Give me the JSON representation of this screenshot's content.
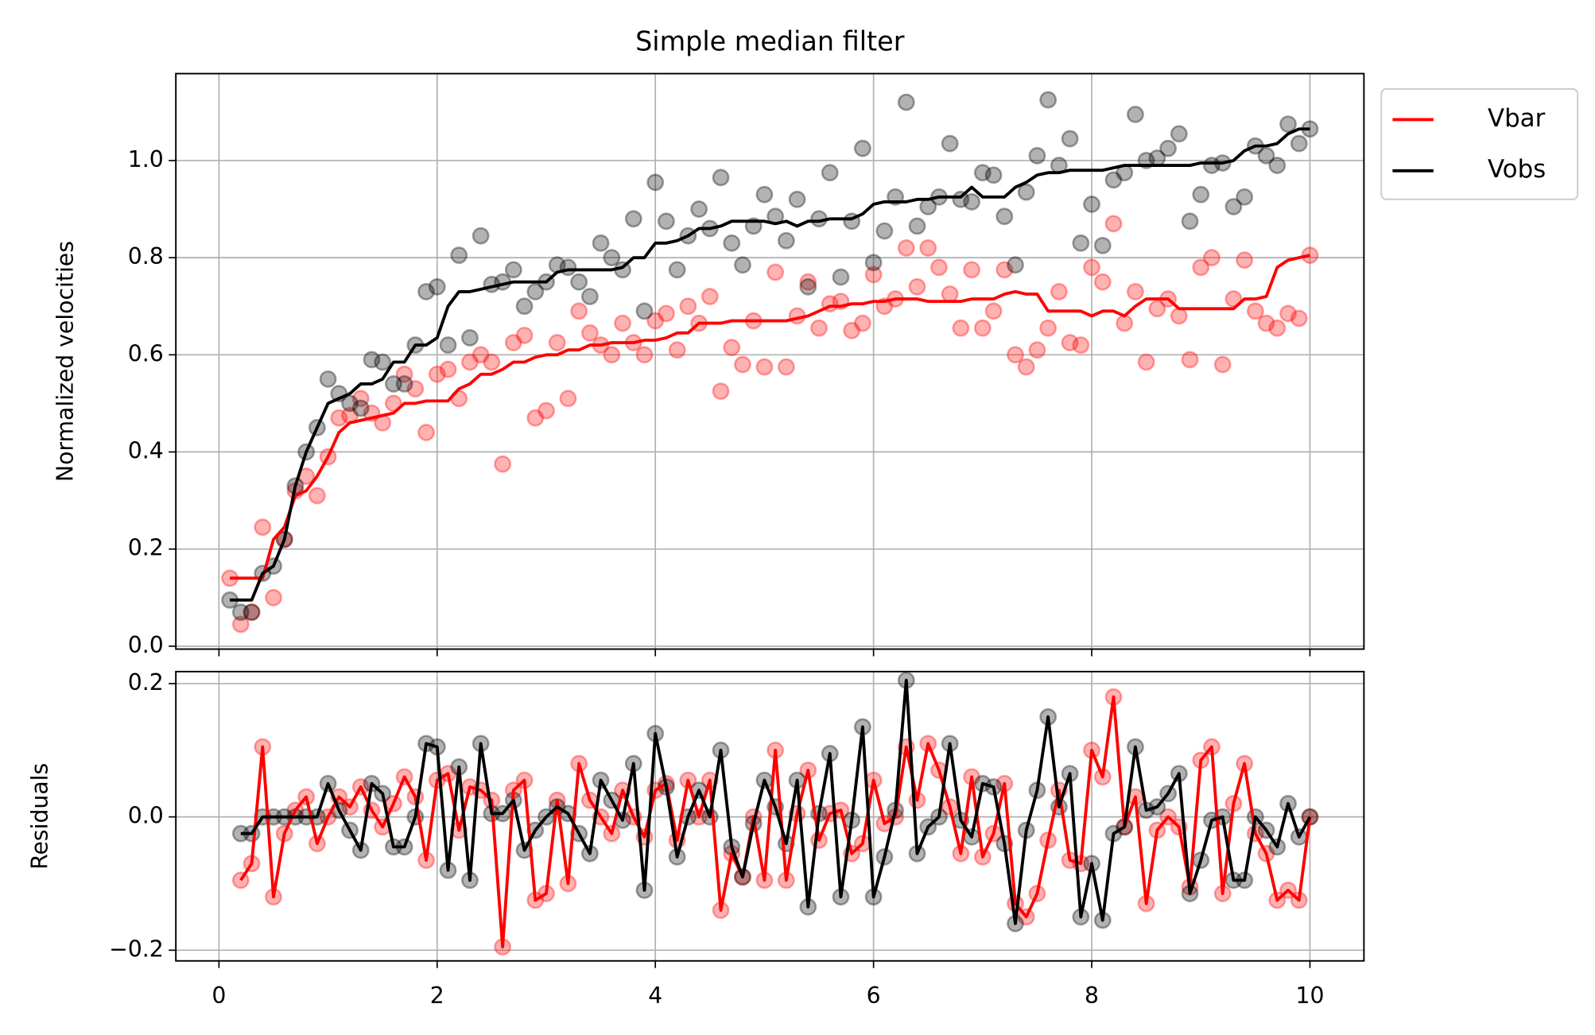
{
  "chart_data": [
    {
      "type": "line",
      "title": "Simple median filter",
      "ylabel": "Normalized velocities",
      "grid": true,
      "legend": "upper-right",
      "xlim": [
        -0.395,
        10.495
      ],
      "ylim": [
        -0.006,
        1.179
      ],
      "yticks": [
        {
          "value": 0,
          "label": "0.0"
        },
        0.2,
        0.4,
        0.6,
        0.8,
        {
          "value": 1,
          "label": "1.0"
        }
      ],
      "x": [
        0.1,
        0.2,
        0.3,
        0.4,
        0.5,
        0.6,
        0.7,
        0.8,
        0.9,
        1.0,
        1.1,
        1.2,
        1.3,
        1.4,
        1.5,
        1.6,
        1.7,
        1.8,
        1.9,
        2.0,
        2.1,
        2.2,
        2.3,
        2.4,
        2.5,
        2.6,
        2.7,
        2.8,
        2.9,
        3.0,
        3.1,
        3.2,
        3.3,
        3.4,
        3.5,
        3.6,
        3.7,
        3.8,
        3.9,
        4.0,
        4.1,
        4.2,
        4.3,
        4.4,
        4.5,
        4.6,
        4.7,
        4.8,
        4.9,
        5.0,
        5.1,
        5.2,
        5.3,
        5.4,
        5.5,
        5.6,
        5.7,
        5.8,
        5.9,
        6.0,
        6.1,
        6.2,
        6.3,
        6.4,
        6.5,
        6.6,
        6.7,
        6.8,
        6.9,
        7.0,
        7.1,
        7.2,
        7.3,
        7.4,
        7.5,
        7.6,
        7.7,
        7.8,
        7.9,
        8.0,
        8.1,
        8.2,
        8.3,
        8.4,
        8.5,
        8.6,
        8.7,
        8.8,
        8.9,
        9.0,
        9.1,
        9.2,
        9.3,
        9.4,
        9.5,
        9.6,
        9.7,
        9.8,
        9.9,
        10.0
      ],
      "series": [
        {
          "style": "scatter",
          "color": "#ff0000",
          "values": [
            0.14,
            0.045,
            0.07,
            0.245,
            0.1,
            0.22,
            0.32,
            0.35,
            0.31,
            0.39,
            0.47,
            0.475,
            0.51,
            0.48,
            0.46,
            0.5,
            0.56,
            0.53,
            0.44,
            0.56,
            0.57,
            0.51,
            0.585,
            0.6,
            0.585,
            0.375,
            0.625,
            0.64,
            0.47,
            0.485,
            0.625,
            0.51,
            0.69,
            0.645,
            0.62,
            0.6,
            0.665,
            0.625,
            0.6,
            0.67,
            0.685,
            0.61,
            0.7,
            0.665,
            0.72,
            0.525,
            0.615,
            0.58,
            0.67,
            0.575,
            0.77,
            0.575,
            0.68,
            0.75,
            0.655,
            0.705,
            0.71,
            0.65,
            0.665,
            0.765,
            0.7,
            0.715,
            0.82,
            0.74,
            0.82,
            0.78,
            0.725,
            0.655,
            0.775,
            0.655,
            0.69,
            0.775,
            0.6,
            0.575,
            0.61,
            0.655,
            0.73,
            0.625,
            0.62,
            0.78,
            0.75,
            0.87,
            0.665,
            0.73,
            0.585,
            0.695,
            0.715,
            0.68,
            0.59,
            0.78,
            0.8,
            0.58,
            0.715,
            0.795,
            0.69,
            0.665,
            0.655,
            0.685,
            0.675,
            0.805
          ]
        },
        {
          "style": "scatter",
          "color": "#000000",
          "values": [
            0.095,
            0.07,
            0.07,
            0.15,
            0.165,
            0.22,
            0.33,
            0.4,
            0.45,
            0.55,
            0.52,
            0.5,
            0.49,
            0.59,
            0.585,
            0.54,
            0.54,
            0.62,
            0.73,
            0.74,
            0.62,
            0.805,
            0.635,
            0.845,
            0.745,
            0.75,
            0.775,
            0.7,
            0.73,
            0.75,
            0.785,
            0.78,
            0.75,
            0.72,
            0.83,
            0.8,
            0.775,
            0.88,
            0.69,
            0.955,
            0.875,
            0.775,
            0.845,
            0.9,
            0.86,
            0.965,
            0.83,
            0.785,
            0.865,
            0.93,
            0.885,
            0.835,
            0.92,
            0.74,
            0.88,
            0.975,
            0.76,
            0.875,
            1.025,
            0.79,
            0.855,
            0.925,
            1.12,
            0.865,
            0.905,
            0.925,
            1.035,
            0.92,
            0.915,
            0.975,
            0.97,
            0.885,
            0.785,
            0.935,
            1.01,
            1.125,
            0.99,
            1.045,
            0.83,
            0.91,
            0.825,
            0.96,
            0.975,
            1.095,
            1.0,
            1.005,
            1.025,
            1.055,
            0.875,
            0.93,
            0.99,
            0.995,
            0.905,
            0.925,
            1.03,
            1.01,
            0.99,
            1.075,
            1.035,
            1.065
          ]
        },
        {
          "name": "Vbar",
          "color": "#ff0000",
          "values": [
            0.14,
            0.14,
            0.14,
            0.14,
            0.22,
            0.245,
            0.31,
            0.32,
            0.35,
            0.39,
            0.44,
            0.46,
            0.465,
            0.47,
            0.475,
            0.48,
            0.5,
            0.5,
            0.505,
            0.505,
            0.505,
            0.53,
            0.54,
            0.56,
            0.56,
            0.57,
            0.585,
            0.585,
            0.595,
            0.6,
            0.6,
            0.61,
            0.61,
            0.62,
            0.62,
            0.625,
            0.625,
            0.625,
            0.63,
            0.63,
            0.635,
            0.645,
            0.645,
            0.665,
            0.665,
            0.665,
            0.67,
            0.67,
            0.67,
            0.67,
            0.67,
            0.67,
            0.675,
            0.68,
            0.69,
            0.7,
            0.7,
            0.705,
            0.705,
            0.71,
            0.71,
            0.715,
            0.715,
            0.715,
            0.71,
            0.71,
            0.71,
            0.71,
            0.715,
            0.715,
            0.715,
            0.725,
            0.73,
            0.725,
            0.725,
            0.69,
            0.69,
            0.69,
            0.69,
            0.68,
            0.69,
            0.69,
            0.68,
            0.7,
            0.715,
            0.715,
            0.715,
            0.695,
            0.695,
            0.695,
            0.695,
            0.695,
            0.695,
            0.715,
            0.715,
            0.72,
            0.78,
            0.795,
            0.8,
            0.805
          ]
        },
        {
          "name": "Vobs",
          "color": "#000000",
          "values": [
            0.095,
            0.095,
            0.095,
            0.15,
            0.165,
            0.22,
            0.33,
            0.4,
            0.45,
            0.5,
            0.51,
            0.52,
            0.54,
            0.54,
            0.55,
            0.585,
            0.585,
            0.62,
            0.62,
            0.635,
            0.7,
            0.73,
            0.73,
            0.735,
            0.74,
            0.745,
            0.75,
            0.75,
            0.75,
            0.75,
            0.77,
            0.775,
            0.775,
            0.775,
            0.775,
            0.775,
            0.78,
            0.8,
            0.8,
            0.83,
            0.83,
            0.835,
            0.845,
            0.86,
            0.86,
            0.865,
            0.875,
            0.875,
            0.875,
            0.875,
            0.87,
            0.875,
            0.865,
            0.875,
            0.875,
            0.88,
            0.88,
            0.88,
            0.89,
            0.91,
            0.915,
            0.915,
            0.915,
            0.92,
            0.92,
            0.925,
            0.925,
            0.925,
            0.945,
            0.925,
            0.925,
            0.925,
            0.945,
            0.955,
            0.97,
            0.975,
            0.975,
            0.98,
            0.98,
            0.98,
            0.98,
            0.985,
            0.99,
            0.99,
            0.99,
            0.99,
            0.99,
            0.99,
            0.99,
            0.995,
            0.995,
            0.995,
            1.0,
            1.02,
            1.03,
            1.03,
            1.035,
            1.055,
            1.065,
            1.065
          ]
        }
      ]
    },
    {
      "type": "line",
      "ylabel": "Residuals",
      "grid": true,
      "xlim": [
        -0.395,
        10.495
      ],
      "ylim": [
        -0.216,
        0.218
      ],
      "xticks": [
        0,
        2,
        4,
        6,
        8,
        10
      ],
      "yticks": [
        {
          "value": -0.2,
          "label": "−0.2"
        },
        {
          "value": 0,
          "label": "0.0"
        },
        0.2
      ],
      "x": [
        0.2,
        0.3,
        0.4,
        0.5,
        0.6,
        0.7,
        0.8,
        0.9,
        1.0,
        1.1,
        1.2,
        1.3,
        1.4,
        1.5,
        1.6,
        1.7,
        1.8,
        1.9,
        2.0,
        2.1,
        2.2,
        2.3,
        2.4,
        2.5,
        2.6,
        2.7,
        2.8,
        2.9,
        3.0,
        3.1,
        3.2,
        3.3,
        3.4,
        3.5,
        3.6,
        3.7,
        3.8,
        3.9,
        4.0,
        4.1,
        4.2,
        4.3,
        4.4,
        4.5,
        4.6,
        4.7,
        4.8,
        4.9,
        5.0,
        5.1,
        5.2,
        5.3,
        5.4,
        5.5,
        5.6,
        5.7,
        5.8,
        5.9,
        6.0,
        6.1,
        6.2,
        6.3,
        6.4,
        6.5,
        6.6,
        6.7,
        6.8,
        6.9,
        7.0,
        7.1,
        7.2,
        7.3,
        7.4,
        7.5,
        7.6,
        7.7,
        7.8,
        7.9,
        8.0,
        8.1,
        8.2,
        8.3,
        8.4,
        8.5,
        8.6,
        8.7,
        8.8,
        8.9,
        9.0,
        9.1,
        9.2,
        9.3,
        9.4,
        9.5,
        9.6,
        9.7,
        9.8,
        9.9,
        10.0
      ],
      "series": [
        {
          "style": "scatter",
          "color": "#ff0000",
          "values": [
            -0.095,
            -0.07,
            0.105,
            -0.12,
            -0.025,
            0.01,
            0.03,
            -0.04,
            0,
            0.03,
            0.015,
            0.045,
            0.01,
            -0.015,
            0.02,
            0.06,
            0.03,
            -0.065,
            0.055,
            0.065,
            -0.02,
            0.045,
            0.04,
            0.025,
            -0.195,
            0.04,
            0.055,
            -0.125,
            -0.115,
            0.025,
            -0.1,
            0.08,
            0.025,
            0,
            -0.025,
            0.04,
            0,
            -0.03,
            0.04,
            0.05,
            -0.035,
            0.055,
            0,
            0.055,
            -0.14,
            -0.055,
            -0.09,
            0,
            -0.095,
            0.1,
            -0.095,
            0.005,
            0.07,
            -0.035,
            0.005,
            0.01,
            -0.055,
            -0.04,
            0.055,
            -0.01,
            0,
            0.105,
            0.025,
            0.11,
            0.07,
            0.015,
            -0.055,
            0.06,
            -0.06,
            -0.025,
            0.05,
            -0.13,
            -0.15,
            -0.115,
            -0.035,
            0.04,
            -0.065,
            -0.07,
            0.1,
            0.06,
            0.18,
            -0.015,
            0.03,
            -0.13,
            -0.02,
            0,
            -0.015,
            -0.105,
            0.085,
            0.105,
            -0.115,
            0.02,
            0.08,
            -0.025,
            -0.055,
            -0.125,
            -0.11,
            -0.125,
            0
          ]
        },
        {
          "style": "scatter",
          "color": "#000000",
          "values": [
            -0.025,
            -0.025,
            0,
            0,
            0,
            0,
            0,
            0,
            0.05,
            0.01,
            -0.02,
            -0.05,
            0.05,
            0.035,
            -0.045,
            -0.045,
            0,
            0.11,
            0.105,
            -0.08,
            0.075,
            -0.095,
            0.11,
            0.005,
            0.005,
            0.025,
            -0.05,
            -0.02,
            0,
            0.015,
            0.005,
            -0.025,
            -0.055,
            0.055,
            0.025,
            -0.005,
            0.08,
            -0.11,
            0.125,
            0.045,
            -0.06,
            0,
            0.04,
            0,
            0.1,
            -0.045,
            -0.09,
            -0.01,
            0.055,
            0.015,
            -0.04,
            0.055,
            -0.135,
            0.005,
            0.095,
            -0.12,
            -0.005,
            0.135,
            -0.12,
            -0.06,
            0.01,
            0.205,
            -0.055,
            -0.015,
            0,
            0.11,
            -0.005,
            -0.03,
            0.05,
            0.045,
            -0.04,
            -0.16,
            -0.02,
            0.04,
            0.15,
            0.015,
            0.065,
            -0.15,
            -0.07,
            -0.155,
            -0.025,
            -0.015,
            0.105,
            0.01,
            0.015,
            0.035,
            0.065,
            -0.115,
            -0.065,
            -0.005,
            0,
            -0.095,
            -0.095,
            0,
            -0.02,
            -0.045,
            0.02,
            -0.03,
            0
          ]
        },
        {
          "style": "line",
          "color": "#ff0000",
          "values": [
            -0.095,
            -0.07,
            0.105,
            -0.12,
            -0.025,
            0.01,
            0.03,
            -0.04,
            0,
            0.03,
            0.015,
            0.045,
            0.01,
            -0.015,
            0.02,
            0.06,
            0.03,
            -0.065,
            0.055,
            0.065,
            -0.02,
            0.045,
            0.04,
            0.025,
            -0.195,
            0.04,
            0.055,
            -0.125,
            -0.115,
            0.025,
            -0.1,
            0.08,
            0.025,
            0,
            -0.025,
            0.04,
            0,
            -0.03,
            0.04,
            0.05,
            -0.035,
            0.055,
            0,
            0.055,
            -0.14,
            -0.055,
            -0.09,
            0,
            -0.095,
            0.1,
            -0.095,
            0.005,
            0.07,
            -0.035,
            0.005,
            0.01,
            -0.055,
            -0.04,
            0.055,
            -0.01,
            0,
            0.105,
            0.025,
            0.11,
            0.07,
            0.015,
            -0.055,
            0.06,
            -0.06,
            -0.025,
            0.05,
            -0.13,
            -0.15,
            -0.115,
            -0.035,
            0.04,
            -0.065,
            -0.07,
            0.1,
            0.06,
            0.18,
            -0.015,
            0.03,
            -0.13,
            -0.02,
            0,
            -0.015,
            -0.105,
            0.085,
            0.105,
            -0.115,
            0.02,
            0.08,
            -0.025,
            -0.055,
            -0.125,
            -0.11,
            -0.125,
            0
          ]
        },
        {
          "style": "line",
          "color": "#000000",
          "values": [
            -0.025,
            -0.025,
            0,
            0,
            0,
            0,
            0,
            0,
            0.05,
            0.01,
            -0.02,
            -0.05,
            0.05,
            0.035,
            -0.045,
            -0.045,
            0,
            0.11,
            0.105,
            -0.08,
            0.075,
            -0.095,
            0.11,
            0.005,
            0.005,
            0.025,
            -0.05,
            -0.02,
            0,
            0.015,
            0.005,
            -0.025,
            -0.055,
            0.055,
            0.025,
            -0.005,
            0.08,
            -0.11,
            0.125,
            0.045,
            -0.06,
            0,
            0.04,
            0,
            0.1,
            -0.045,
            -0.09,
            -0.01,
            0.055,
            0.015,
            -0.04,
            0.055,
            -0.135,
            0.005,
            0.095,
            -0.12,
            -0.005,
            0.135,
            -0.12,
            -0.06,
            0.01,
            0.205,
            -0.055,
            -0.015,
            0,
            0.11,
            -0.005,
            -0.03,
            0.05,
            0.045,
            -0.04,
            -0.16,
            -0.02,
            0.04,
            0.15,
            0.015,
            0.065,
            -0.15,
            -0.07,
            -0.155,
            -0.025,
            -0.015,
            0.105,
            0.01,
            0.015,
            0.035,
            0.065,
            -0.115,
            -0.065,
            -0.005,
            0,
            -0.095,
            -0.095,
            0,
            -0.02,
            -0.045,
            0.02,
            -0.03,
            0
          ]
        }
      ]
    }
  ]
}
